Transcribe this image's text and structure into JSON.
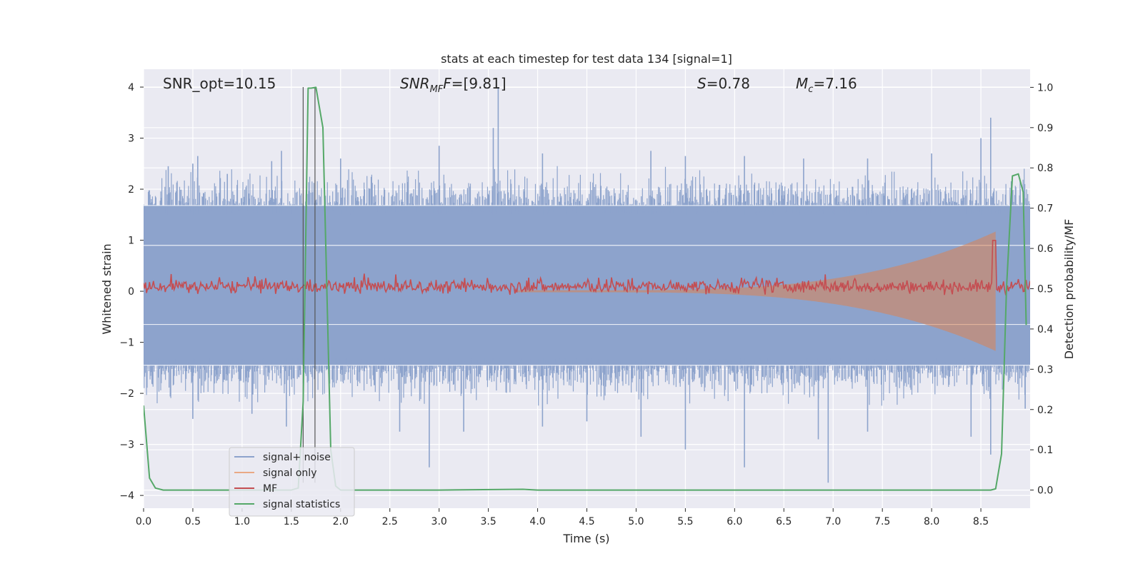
{
  "chart_data": {
    "type": "line",
    "title": "stats at each timestep for test data 134 [signal=1]",
    "xlabel": "Time (s)",
    "ylabel": "Whitened strain",
    "ylabel_right": "Detection probability/MF",
    "xlim": [
      0,
      9.0
    ],
    "ylim": [
      -4.25,
      4.35
    ],
    "ylim_right": [
      -0.045,
      1.045
    ],
    "x_ticks": [
      "0.0",
      "0.5",
      "1.0",
      "1.5",
      "2.0",
      "2.5",
      "3.0",
      "3.5",
      "4.0",
      "4.5",
      "5.0",
      "5.5",
      "6.0",
      "6.5",
      "7.0",
      "7.5",
      "8.0",
      "8.5"
    ],
    "y_ticks": [
      "4",
      "3",
      "2",
      "1",
      "0",
      "-1",
      "-2",
      "-3",
      "-4"
    ],
    "y_ticks_display": [
      "4",
      "3",
      "2",
      "1",
      "0",
      "−1",
      "−2",
      "−3",
      "−4"
    ],
    "y_right_ticks": [
      "1.0",
      "0.9",
      "0.8",
      "0.7",
      "0.6",
      "0.5",
      "0.4",
      "0.3",
      "0.2",
      "0.1",
      "0.0"
    ],
    "grid": true,
    "legend_position": "lower-left",
    "annotations": {
      "snr_opt": "SNR_opt=10.15",
      "snr_mf_prefix": "SNR",
      "snr_mf_sub": "MF",
      "snr_mf_suffix": "=[9.81]",
      "s_var": "S",
      "s_value": "=0.78",
      "mc_var": "M",
      "mc_sub": "c",
      "mc_value": "=7.16"
    },
    "vertical_markers_x": [
      1.62,
      1.74
    ],
    "series": [
      {
        "name": "signal+ noise",
        "color": "#8da3cc",
        "axis": "left",
        "band_y": [
          -1.45,
          1.68
        ],
        "band_inner_y": [
          -0.65,
          0.9
        ],
        "spike_peaks": [
          [
            0.25,
            2.45
          ],
          [
            0.5,
            2.5
          ],
          [
            0.55,
            2.65
          ],
          [
            0.85,
            2.3
          ],
          [
            1.3,
            2.55
          ],
          [
            1.4,
            2.75
          ],
          [
            2.0,
            2.6
          ],
          [
            3.0,
            2.85
          ],
          [
            3.55,
            3.2
          ],
          [
            3.6,
            4.0
          ],
          [
            4.05,
            2.7
          ],
          [
            5.15,
            2.75
          ],
          [
            5.5,
            2.65
          ],
          [
            6.1,
            2.65
          ],
          [
            6.7,
            2.6
          ],
          [
            7.35,
            2.6
          ],
          [
            8.0,
            2.7
          ],
          [
            8.5,
            3.0
          ],
          [
            8.6,
            3.4
          ],
          [
            8.9,
            2.0
          ]
        ],
        "spike_troughs": [
          [
            0.5,
            -2.5
          ],
          [
            1.1,
            -2.4
          ],
          [
            1.45,
            -2.65
          ],
          [
            2.6,
            -2.75
          ],
          [
            2.9,
            -3.45
          ],
          [
            3.25,
            -2.75
          ],
          [
            4.05,
            -2.65
          ],
          [
            4.5,
            -2.55
          ],
          [
            5.05,
            -2.85
          ],
          [
            5.5,
            -3.1
          ],
          [
            6.1,
            -3.45
          ],
          [
            6.85,
            -2.9
          ],
          [
            6.95,
            -3.75
          ],
          [
            7.35,
            -2.75
          ],
          [
            8.4,
            -2.85
          ],
          [
            8.6,
            -3.2
          ],
          [
            8.95,
            -2.3
          ]
        ]
      },
      {
        "name": "signal only",
        "color": "#dd8452",
        "axis": "left",
        "chirp_start_x": 4.5,
        "chirp_end_x": 8.65,
        "chirp_peak_amplitude": 1.15
      },
      {
        "name": "MF",
        "color": "#c44e52",
        "axis": "right",
        "baseline": 0.505,
        "peak_x": 8.63,
        "peak_value": 0.62
      },
      {
        "name": "signal statistics",
        "color": "#55a868",
        "axis": "right",
        "x": [
          0.0,
          0.06,
          0.12,
          0.2,
          0.4,
          1.0,
          1.5,
          1.57,
          1.62,
          1.67,
          1.7,
          1.75,
          1.82,
          1.9,
          1.95,
          2.0,
          3.0,
          3.85,
          4.0,
          6.0,
          8.0,
          8.6,
          8.65,
          8.71,
          8.76,
          8.82,
          8.88,
          8.93,
          8.96
        ],
        "y": [
          0.21,
          0.03,
          0.005,
          0.0,
          0.0,
          0.0,
          0.0,
          0.005,
          0.22,
          0.998,
          0.998,
          1.0,
          0.9,
          0.1,
          0.01,
          0.0,
          0.0,
          0.002,
          0.0,
          0.0,
          0.0,
          0.0,
          0.003,
          0.09,
          0.5,
          0.78,
          0.785,
          0.74,
          0.41
        ]
      }
    ]
  }
}
